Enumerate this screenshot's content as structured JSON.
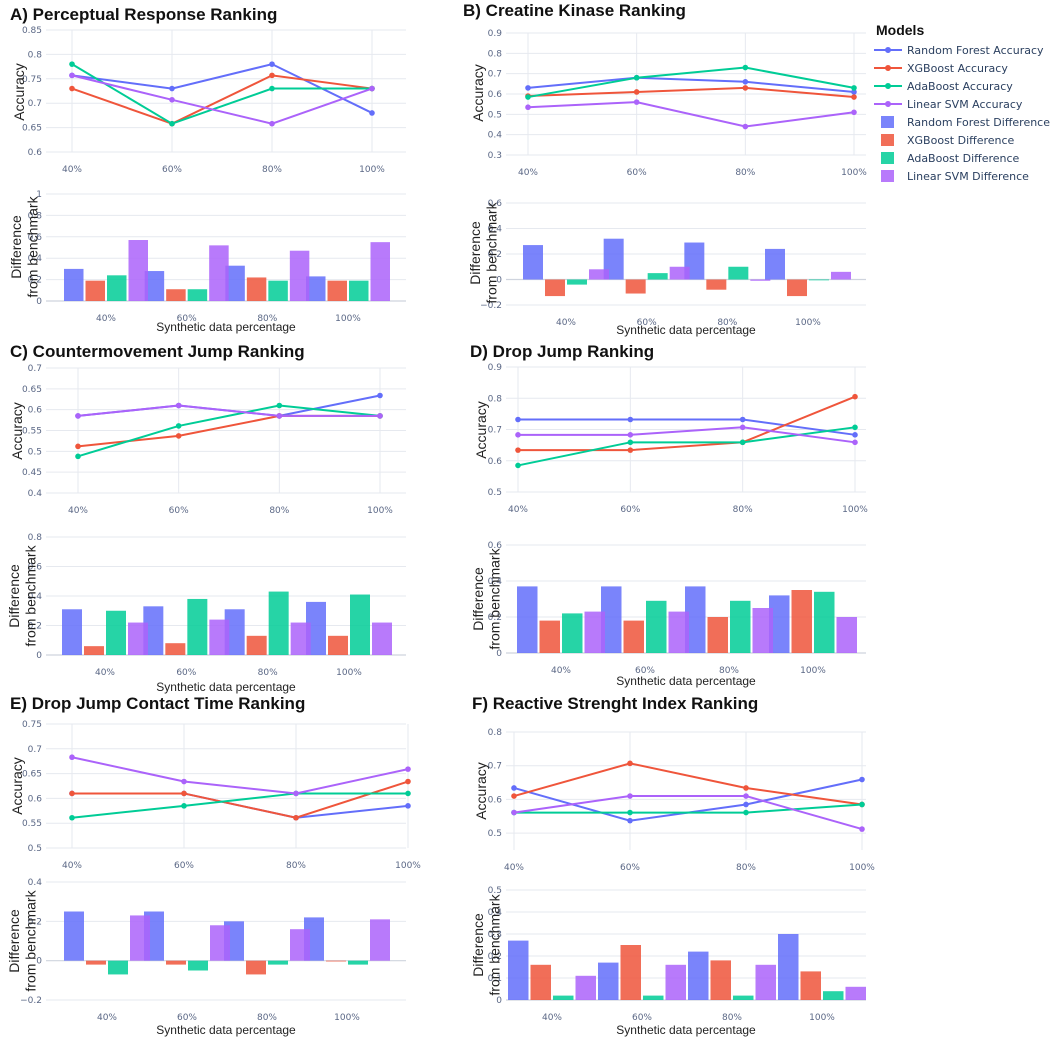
{
  "legend": {
    "title": "Models",
    "entries": [
      {
        "label": "Random Forest Accuracy",
        "kind": "line",
        "color": "#636efa"
      },
      {
        "label": "XGBoost Accuracy",
        "kind": "line",
        "color": "#ef553b"
      },
      {
        "label": "AdaBoost Accuracy",
        "kind": "line",
        "color": "#00cc96"
      },
      {
        "label": "Linear SVM Accuracy",
        "kind": "line",
        "color": "#ab63fa"
      },
      {
        "label": "Random Forest Difference",
        "kind": "bar",
        "color": "#636efa"
      },
      {
        "label": "XGBoost Difference",
        "kind": "bar",
        "color": "#ef553b"
      },
      {
        "label": "AdaBoost Difference",
        "kind": "bar",
        "color": "#00cc96"
      },
      {
        "label": "Linear SVM Difference",
        "kind": "bar",
        "color": "#ab63fa"
      }
    ]
  },
  "chart_data": [
    {
      "panel": "A",
      "title": "A) Perceptual Response Ranking",
      "type": "line+bar",
      "categories": [
        "40%",
        "60%",
        "80%",
        "100%"
      ],
      "top": {
        "ylabel": "Accuracy",
        "ylim": [
          0.6,
          0.85
        ],
        "yticks": [
          "0.6",
          "0.65",
          "0.7",
          "0.75",
          "0.8",
          "0.85"
        ],
        "ytick_values": [
          0.6,
          0.65,
          0.7,
          0.75,
          0.8,
          0.85
        ],
        "series": [
          {
            "name": "Random Forest Accuracy",
            "values": [
              0.757,
              0.73,
              0.78,
              0.68
            ]
          },
          {
            "name": "XGBoost Accuracy",
            "values": [
              0.73,
              0.658,
              0.757,
              0.73
            ]
          },
          {
            "name": "AdaBoost Accuracy",
            "values": [
              0.78,
              0.658,
              0.73,
              0.73
            ]
          },
          {
            "name": "Linear SVM Accuracy",
            "values": [
              0.757,
              0.707,
              0.658,
              0.73
            ]
          }
        ]
      },
      "bottom": {
        "ylabel": [
          "Difference",
          "from benchmark"
        ],
        "xlabel": "Synthetic data percentage",
        "ylim": [
          0,
          1
        ],
        "yticks": [
          "0",
          "0.2",
          "0.4",
          "0.6",
          "0.8",
          "1"
        ],
        "ytick_values": [
          0,
          0.2,
          0.4,
          0.6,
          0.8,
          1
        ],
        "series": [
          {
            "name": "Random Forest Difference",
            "values": [
              0.3,
              0.28,
              0.33,
              0.23
            ]
          },
          {
            "name": "XGBoost Difference",
            "values": [
              0.19,
              0.11,
              0.22,
              0.19
            ]
          },
          {
            "name": "AdaBoost Difference",
            "values": [
              0.24,
              0.11,
              0.19,
              0.19
            ]
          },
          {
            "name": "Linear SVM Difference",
            "values": [
              0.57,
              0.52,
              0.47,
              0.55
            ]
          }
        ]
      }
    },
    {
      "panel": "B",
      "title": "B) Creatine Kinase Ranking",
      "type": "line+bar",
      "categories": [
        "40%",
        "60%",
        "80%",
        "100%"
      ],
      "top": {
        "ylabel": "Accuracy",
        "ylim": [
          0.3,
          0.9
        ],
        "yticks": [
          "0.3",
          "0.4",
          "0.5",
          "0.6",
          "0.7",
          "0.8",
          "0.9"
        ],
        "ytick_values": [
          0.3,
          0.4,
          0.5,
          0.6,
          0.7,
          0.8,
          0.9
        ],
        "series": [
          {
            "name": "Random Forest Accuracy",
            "values": [
              0.63,
              0.68,
              0.66,
              0.61
            ]
          },
          {
            "name": "XGBoost Accuracy",
            "values": [
              0.59,
              0.61,
              0.63,
              0.585
            ]
          },
          {
            "name": "AdaBoost Accuracy",
            "values": [
              0.585,
              0.68,
              0.73,
              0.63
            ]
          },
          {
            "name": "Linear SVM Accuracy",
            "values": [
              0.535,
              0.56,
              0.44,
              0.51
            ]
          }
        ]
      },
      "bottom": {
        "ylabel": [
          "Difference",
          "from benchmark"
        ],
        "xlabel": "Synthetic data percentage",
        "ylim": [
          -0.2,
          0.6
        ],
        "yticks": [
          "−0.2",
          "0",
          "0.2",
          "0.4",
          "0.6"
        ],
        "ytick_values": [
          -0.2,
          0,
          0.2,
          0.4,
          0.6
        ],
        "series": [
          {
            "name": "Random Forest Difference",
            "values": [
              0.27,
              0.32,
              0.29,
              0.24
            ]
          },
          {
            "name": "XGBoost Difference",
            "values": [
              -0.13,
              -0.11,
              -0.08,
              -0.13
            ]
          },
          {
            "name": "AdaBoost Difference",
            "values": [
              -0.04,
              0.05,
              0.1,
              0.0
            ]
          },
          {
            "name": "Linear SVM Difference",
            "values": [
              0.08,
              0.1,
              -0.01,
              0.06
            ]
          }
        ]
      }
    },
    {
      "panel": "C",
      "title": "C) Countermovement Jump Ranking",
      "type": "line+bar",
      "categories": [
        "40%",
        "60%",
        "80%",
        "100%"
      ],
      "top": {
        "ylabel": "Accuracy",
        "ylim": [
          0.4,
          0.7
        ],
        "yticks": [
          "0.4",
          "0.45",
          "0.5",
          "0.55",
          "0.6",
          "0.65",
          "0.7"
        ],
        "ytick_values": [
          0.4,
          0.45,
          0.5,
          0.55,
          0.6,
          0.65,
          0.7
        ],
        "series": [
          {
            "name": "Random Forest Accuracy",
            "values": [
              0.585,
              0.61,
              0.585,
              0.634
            ]
          },
          {
            "name": "XGBoost Accuracy",
            "values": [
              0.512,
              0.537,
              0.585,
              0.585
            ]
          },
          {
            "name": "AdaBoost Accuracy",
            "values": [
              0.488,
              0.561,
              0.61,
              0.585
            ]
          },
          {
            "name": "Linear SVM Accuracy",
            "values": [
              0.585,
              0.61,
              0.585,
              0.585
            ]
          }
        ]
      },
      "bottom": {
        "ylabel": [
          "Difference",
          "from benchmark"
        ],
        "xlabel": "Synthetic data percentage",
        "ylim": [
          0,
          0.8
        ],
        "yticks": [
          "0",
          "0.2",
          "0.4",
          "0.6",
          "0.8"
        ],
        "ytick_values": [
          0,
          0.2,
          0.4,
          0.6,
          0.8
        ],
        "series": [
          {
            "name": "Random Forest Difference",
            "values": [
              0.31,
              0.33,
              0.31,
              0.36
            ]
          },
          {
            "name": "XGBoost Difference",
            "values": [
              0.06,
              0.08,
              0.13,
              0.13
            ]
          },
          {
            "name": "AdaBoost Difference",
            "values": [
              0.3,
              0.38,
              0.43,
              0.41
            ]
          },
          {
            "name": "Linear SVM Difference",
            "values": [
              0.22,
              0.24,
              0.22,
              0.22
            ]
          }
        ]
      }
    },
    {
      "panel": "D",
      "title": "D) Drop Jump Ranking",
      "type": "line+bar",
      "categories": [
        "40%",
        "60%",
        "80%",
        "100%"
      ],
      "top": {
        "ylabel": "Accuracy",
        "ylim": [
          0.5,
          0.9
        ],
        "yticks": [
          "0.5",
          "0.6",
          "0.7",
          "0.8",
          "0.9"
        ],
        "ytick_values": [
          0.5,
          0.6,
          0.7,
          0.8,
          0.9
        ],
        "series": [
          {
            "name": "Random Forest Accuracy",
            "values": [
              0.732,
              0.732,
              0.732,
              0.683
            ]
          },
          {
            "name": "XGBoost Accuracy",
            "values": [
              0.634,
              0.634,
              0.659,
              0.805
            ]
          },
          {
            "name": "AdaBoost Accuracy",
            "values": [
              0.585,
              0.659,
              0.659,
              0.707
            ]
          },
          {
            "name": "Linear SVM Accuracy",
            "values": [
              0.683,
              0.683,
              0.707,
              0.659
            ]
          }
        ]
      },
      "bottom": {
        "ylabel": [
          "Difference",
          "from benchmark"
        ],
        "xlabel": "Synthetic data percentage",
        "ylim": [
          0,
          0.6
        ],
        "yticks": [
          "0",
          "0.2",
          "0.4",
          "0.6"
        ],
        "ytick_values": [
          0,
          0.2,
          0.4,
          0.6
        ],
        "series": [
          {
            "name": "Random Forest Difference",
            "values": [
              0.37,
              0.37,
              0.37,
              0.32
            ]
          },
          {
            "name": "XGBoost Difference",
            "values": [
              0.18,
              0.18,
              0.2,
              0.35
            ]
          },
          {
            "name": "AdaBoost Difference",
            "values": [
              0.22,
              0.29,
              0.29,
              0.34
            ]
          },
          {
            "name": "Linear SVM Difference",
            "values": [
              0.23,
              0.23,
              0.25,
              0.2
            ]
          }
        ]
      }
    },
    {
      "panel": "E",
      "title": "E) Drop Jump Contact Time Ranking",
      "type": "line+bar",
      "categories": [
        "40%",
        "60%",
        "80%",
        "100%"
      ],
      "top": {
        "ylabel": "Accuracy",
        "ylim": [
          0.5,
          0.75
        ],
        "yticks": [
          "0.5",
          "0.55",
          "0.6",
          "0.65",
          "0.7",
          "0.75"
        ],
        "ytick_values": [
          0.5,
          0.55,
          0.6,
          0.65,
          0.7,
          0.75
        ],
        "series": [
          {
            "name": "Random Forest Accuracy",
            "values": [
              0.61,
              0.61,
              0.561,
              0.585
            ]
          },
          {
            "name": "XGBoost Accuracy",
            "values": [
              0.61,
              0.61,
              0.561,
              0.634
            ]
          },
          {
            "name": "AdaBoost Accuracy",
            "values": [
              0.561,
              0.585,
              0.61,
              0.61
            ]
          },
          {
            "name": "Linear SVM Accuracy",
            "values": [
              0.683,
              0.634,
              0.61,
              0.659
            ]
          }
        ]
      },
      "bottom": {
        "ylabel": [
          "Difference",
          "from benchmark"
        ],
        "xlabel": "Synthetic data percentage",
        "ylim": [
          -0.2,
          0.4
        ],
        "yticks": [
          "−0.2",
          "0",
          "0.2",
          "0.4"
        ],
        "ytick_values": [
          -0.2,
          0,
          0.2,
          0.4
        ],
        "series": [
          {
            "name": "Random Forest Difference",
            "values": [
              0.25,
              0.25,
              0.2,
              0.22
            ]
          },
          {
            "name": "XGBoost Difference",
            "values": [
              -0.02,
              -0.02,
              -0.07,
              0.0
            ]
          },
          {
            "name": "AdaBoost Difference",
            "values": [
              -0.07,
              -0.05,
              -0.02,
              -0.02
            ]
          },
          {
            "name": "Linear SVM Difference",
            "values": [
              0.23,
              0.18,
              0.16,
              0.21
            ]
          }
        ]
      }
    },
    {
      "panel": "F",
      "title": "F) Reactive Strenght Index Ranking",
      "type": "line+bar",
      "categories": [
        "40%",
        "60%",
        "80%",
        "100%"
      ],
      "top": {
        "ylabel": "Accuracy",
        "ylim": [
          0.45,
          0.8
        ],
        "yticks": [
          "0.5",
          "0.6",
          "0.7",
          "0.8"
        ],
        "ytick_values": [
          0.5,
          0.6,
          0.7,
          0.8
        ],
        "series": [
          {
            "name": "Random Forest Accuracy",
            "values": [
              0.634,
              0.537,
              0.585,
              0.659
            ]
          },
          {
            "name": "XGBoost Accuracy",
            "values": [
              0.61,
              0.707,
              0.634,
              0.585
            ]
          },
          {
            "name": "AdaBoost Accuracy",
            "values": [
              0.561,
              0.561,
              0.561,
              0.585
            ]
          },
          {
            "name": "Linear SVM Accuracy",
            "values": [
              0.561,
              0.61,
              0.61,
              0.512
            ]
          }
        ]
      },
      "bottom": {
        "ylabel": [
          "Difference",
          "from benchmark"
        ],
        "xlabel": "Synthetic data percentage",
        "ylim": [
          0,
          0.5
        ],
        "yticks": [
          "0",
          "0.1",
          "0.2",
          "0.3",
          "0.4",
          "0.5"
        ],
        "ytick_values": [
          0,
          0.1,
          0.2,
          0.3,
          0.4,
          0.5
        ],
        "series": [
          {
            "name": "Random Forest Difference",
            "values": [
              0.27,
              0.17,
              0.22,
              0.3
            ]
          },
          {
            "name": "XGBoost Difference",
            "values": [
              0.16,
              0.25,
              0.18,
              0.13
            ]
          },
          {
            "name": "AdaBoost Difference",
            "values": [
              0.02,
              0.02,
              0.02,
              0.04
            ]
          },
          {
            "name": "Linear SVM Difference",
            "values": [
              0.11,
              0.16,
              0.16,
              0.06
            ]
          }
        ]
      }
    }
  ]
}
